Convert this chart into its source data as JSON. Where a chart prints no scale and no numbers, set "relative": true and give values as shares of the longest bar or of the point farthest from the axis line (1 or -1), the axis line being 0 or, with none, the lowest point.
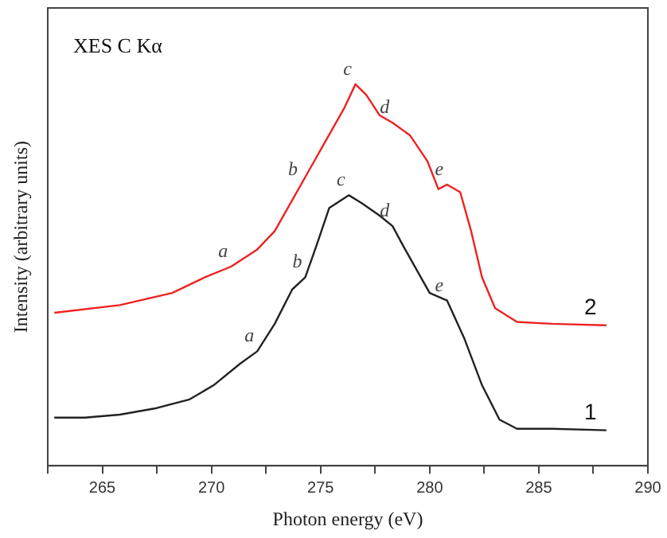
{
  "chart_data": {
    "type": "line",
    "title": "XES C Kα",
    "xlabel": "Photon energy (eV)",
    "ylabel": "Intensity (arbitrary units)",
    "relative": true,
    "xlim": [
      262.5,
      290
    ],
    "xticks": [
      {
        "value": 262.5,
        "label": null
      },
      265,
      {
        "value": 267.5,
        "label": null
      },
      270,
      {
        "value": 272.5,
        "label": null
      },
      275,
      {
        "value": 277.5,
        "label": null
      },
      280,
      {
        "value": 282.5,
        "label": null
      },
      285,
      {
        "value": 287.5,
        "label": null
      },
      290
    ],
    "grid": false,
    "legend": false,
    "marker": "none",
    "line_style": "solid",
    "series": [
      {
        "name": "1",
        "color": "#222222",
        "x": [
          262.8,
          264.2,
          265.8,
          267.4,
          269.0,
          270.1,
          271.3,
          272.1,
          272.9,
          273.7,
          274.3,
          274.8,
          275.4,
          276.3,
          276.9,
          277.7,
          278.3,
          278.8,
          279.4,
          280.0,
          280.8,
          281.6,
          282.4,
          283.2,
          284.0,
          285.6,
          288.1
        ],
        "values": [
          0.126,
          0.126,
          0.134,
          0.15,
          0.174,
          0.211,
          0.267,
          0.3,
          0.372,
          0.462,
          0.494,
          0.575,
          0.676,
          0.709,
          0.688,
          0.656,
          0.628,
          0.575,
          0.514,
          0.453,
          0.433,
          0.332,
          0.211,
          0.121,
          0.097,
          0.097,
          0.093
        ]
      },
      {
        "name": "2",
        "color": "#ee2222",
        "x": [
          262.8,
          265.8,
          268.2,
          269.7,
          270.9,
          272.1,
          272.9,
          273.7,
          274.5,
          275.3,
          276.1,
          276.6,
          277.1,
          277.7,
          278.3,
          279.1,
          279.9,
          280.4,
          280.8,
          281.4,
          281.9,
          282.4,
          283.0,
          284.0,
          285.6,
          288.1
        ],
        "values": [
          0.401,
          0.421,
          0.453,
          0.494,
          0.522,
          0.567,
          0.615,
          0.696,
          0.777,
          0.858,
          0.939,
          1,
          0.972,
          0.919,
          0.899,
          0.866,
          0.798,
          0.725,
          0.737,
          0.717,
          0.615,
          0.494,
          0.413,
          0.377,
          0.372,
          0.368
        ]
      }
    ],
    "annotations": [
      {
        "text": "a",
        "x": 270.9,
        "y": 0.522
      },
      {
        "text": "b",
        "x": 274.1,
        "y": 0.737
      },
      {
        "text": "c",
        "x": 276.6,
        "y": 1
      },
      {
        "text": "d",
        "x": 278.3,
        "y": 0.899
      },
      {
        "text": "e",
        "x": 280.8,
        "y": 0.737
      },
      {
        "text": "a",
        "x": 272.1,
        "y": 0.3
      },
      {
        "text": "b",
        "x": 274.3,
        "y": 0.494
      },
      {
        "text": "c",
        "x": 276.3,
        "y": 0.709
      },
      {
        "text": "d",
        "x": 278.3,
        "y": 0.628
      },
      {
        "text": "e",
        "x": 280.8,
        "y": 0.433
      }
    ]
  }
}
